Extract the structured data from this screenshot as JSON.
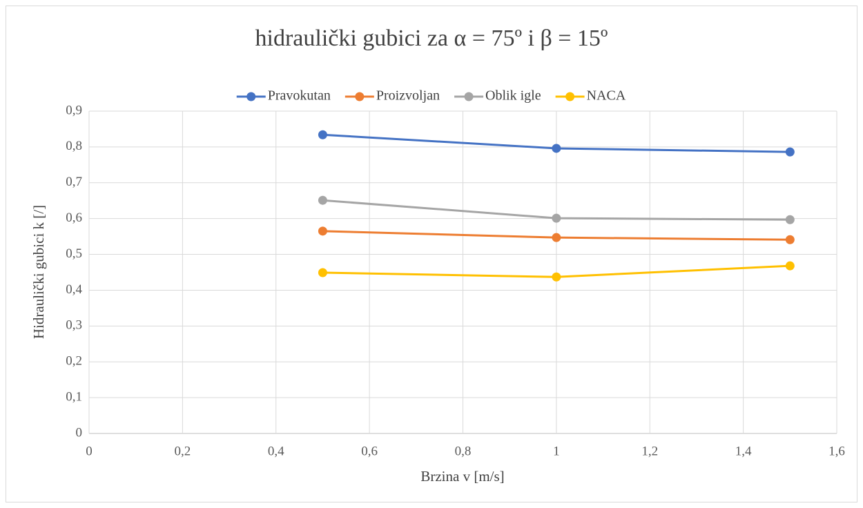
{
  "chart_data": {
    "type": "line",
    "title": "hidraulički gubici za α = 75º i β = 15º",
    "x_label": "Brzina v [m/s]",
    "y_label": "Hidraulički gubici k [/]",
    "x": [
      0.5,
      1,
      1.5
    ],
    "series": [
      {
        "name": "Pravokutan",
        "color": "#4472c4",
        "values": [
          0.834,
          0.796,
          0.786
        ]
      },
      {
        "name": "Proizvoljan",
        "color": "#ed7d31",
        "values": [
          0.565,
          0.547,
          0.541
        ]
      },
      {
        "name": "Oblik igle",
        "color": "#a5a5a5",
        "values": [
          0.651,
          0.601,
          0.597
        ]
      },
      {
        "name": "NACA",
        "color": "#ffc000",
        "values": [
          0.449,
          0.437,
          0.468
        ]
      }
    ],
    "xlim": [
      0,
      1.6
    ],
    "xticks": [
      0,
      {
        "value": 0.2,
        "label": "0,2"
      },
      {
        "value": 0.4,
        "label": "0,4"
      },
      {
        "value": 0.6,
        "label": "0,6"
      },
      {
        "value": 0.8,
        "label": "0,8"
      },
      1,
      {
        "value": 1.2,
        "label": "1,2"
      },
      {
        "value": 1.4,
        "label": "1,4"
      },
      {
        "value": 1.6,
        "label": "1,6"
      }
    ],
    "ylim": [
      0,
      0.9
    ],
    "yticks": [
      0,
      {
        "value": 0.1,
        "label": "0,1"
      },
      {
        "value": 0.2,
        "label": "0,2"
      },
      {
        "value": 0.3,
        "label": "0,3"
      },
      {
        "value": 0.4,
        "label": "0,4"
      },
      {
        "value": 0.5,
        "label": "0,5"
      },
      {
        "value": 0.6,
        "label": "0,6"
      },
      {
        "value": 0.7,
        "label": "0,7"
      },
      {
        "value": 0.8,
        "label": "0,8"
      },
      {
        "value": 0.9,
        "label": "0,9"
      }
    ],
    "grid": true,
    "legend": "top"
  }
}
